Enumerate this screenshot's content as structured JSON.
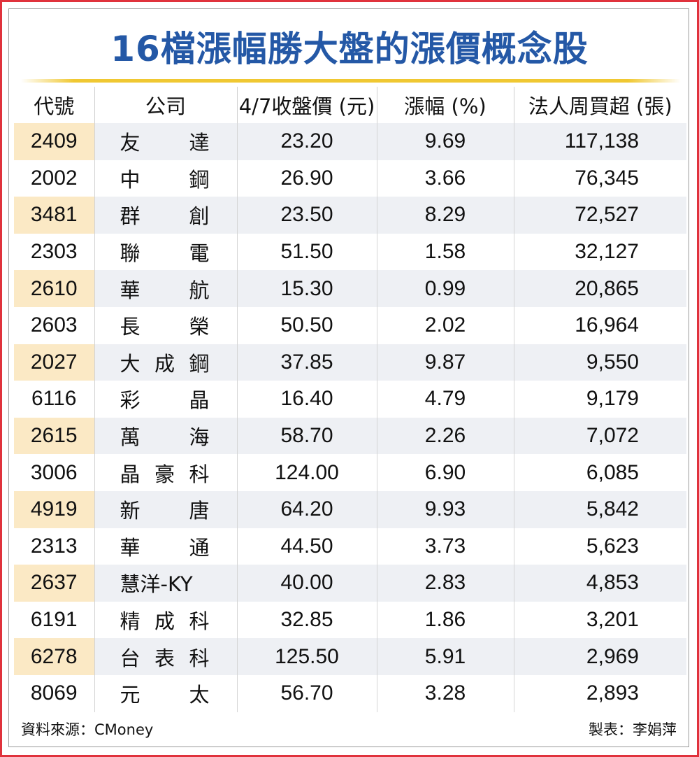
{
  "title": "16檔漲幅勝大盤的漲價概念股",
  "headers": [
    "代號",
    "公司",
    "4/7收盤價 (元)",
    "漲幅 (%)",
    "法人周買超 (張)"
  ],
  "rows": [
    {
      "code": "2409",
      "name": [
        "友",
        "達"
      ],
      "price": "23.20",
      "change": "9.69",
      "net_buy": "117,138"
    },
    {
      "code": "2002",
      "name": [
        "中",
        "鋼"
      ],
      "price": "26.90",
      "change": "3.66",
      "net_buy": "76,345"
    },
    {
      "code": "3481",
      "name": [
        "群",
        "創"
      ],
      "price": "23.50",
      "change": "8.29",
      "net_buy": "72,527"
    },
    {
      "code": "2303",
      "name": [
        "聯",
        "電"
      ],
      "price": "51.50",
      "change": "1.58",
      "net_buy": "32,127"
    },
    {
      "code": "2610",
      "name": [
        "華",
        "航"
      ],
      "price": "15.30",
      "change": "0.99",
      "net_buy": "20,865"
    },
    {
      "code": "2603",
      "name": [
        "長",
        "榮"
      ],
      "price": "50.50",
      "change": "2.02",
      "net_buy": "16,964"
    },
    {
      "code": "2027",
      "name": [
        "大",
        "成",
        "鋼"
      ],
      "price": "37.85",
      "change": "9.87",
      "net_buy": "9,550"
    },
    {
      "code": "6116",
      "name": [
        "彩",
        "晶"
      ],
      "price": "16.40",
      "change": "4.79",
      "net_buy": "9,179"
    },
    {
      "code": "2615",
      "name": [
        "萬",
        "海"
      ],
      "price": "58.70",
      "change": "2.26",
      "net_buy": "7,072"
    },
    {
      "code": "3006",
      "name": [
        "晶",
        "豪",
        "科"
      ],
      "price": "124.00",
      "change": "6.90",
      "net_buy": "6,085"
    },
    {
      "code": "4919",
      "name": [
        "新",
        "唐"
      ],
      "price": "64.20",
      "change": "9.93",
      "net_buy": "5,842"
    },
    {
      "code": "2313",
      "name": [
        "華",
        "通"
      ],
      "price": "44.50",
      "change": "3.73",
      "net_buy": "5,623"
    },
    {
      "code": "2637",
      "name": [
        "慧洋-KY"
      ],
      "price": "40.00",
      "change": "2.83",
      "net_buy": "4,853"
    },
    {
      "code": "6191",
      "name": [
        "精",
        "成",
        "科"
      ],
      "price": "32.85",
      "change": "1.86",
      "net_buy": "3,201"
    },
    {
      "code": "6278",
      "name": [
        "台",
        "表",
        "科"
      ],
      "price": "125.50",
      "change": "5.91",
      "net_buy": "2,969"
    },
    {
      "code": "8069",
      "name": [
        "元",
        "太"
      ],
      "price": "56.70",
      "change": "3.28",
      "net_buy": "2,893"
    }
  ],
  "footer": {
    "source": "資料來源：CMoney",
    "author": "製表：李娟萍"
  },
  "colors": {
    "title": "#2458a6",
    "border": "#e0323c",
    "rule": "#f0c832",
    "code_highlight": "#fbe9c5",
    "row_stripe": "#eef0f4"
  }
}
